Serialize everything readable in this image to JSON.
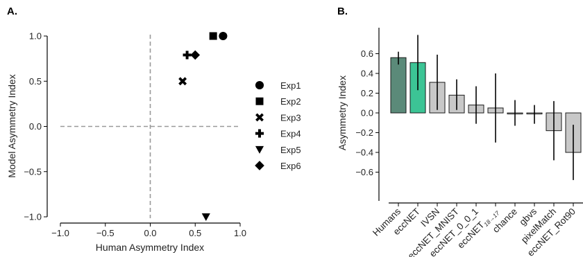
{
  "panels": {
    "a_label": "A.",
    "b_label": "B."
  },
  "chart_data": [
    {
      "type": "scatter",
      "xlabel": "Human Asymmetry Index",
      "ylabel": "Model Asymmetry Index",
      "xlim": [
        -1.0,
        1.0
      ],
      "ylim": [
        -1.0,
        1.0
      ],
      "xticks": [
        "−1.0",
        "−0.5",
        "0.0",
        "0.5",
        "1.0"
      ],
      "yticks": [
        "−1.0",
        "−0.5",
        "0.0",
        "0.5",
        "1.0"
      ],
      "reference_lines": [
        "x = 0 dashed",
        "y = 0 dashed"
      ],
      "legend_position": "right",
      "series": [
        {
          "name": "Exp1",
          "marker": "circle",
          "x": 0.81,
          "y": 1.0
        },
        {
          "name": "Exp2",
          "marker": "square",
          "x": 0.7,
          "y": 1.0
        },
        {
          "name": "Exp3",
          "marker": "x",
          "x": 0.36,
          "y": 0.5
        },
        {
          "name": "Exp4",
          "marker": "plus",
          "x": 0.41,
          "y": 0.79
        },
        {
          "name": "Exp5",
          "marker": "triangle-down",
          "x": 0.62,
          "y": -1.0
        },
        {
          "name": "Exp6",
          "marker": "diamond",
          "x": 0.5,
          "y": 0.79
        }
      ],
      "colors": {
        "points": "#000000",
        "reference": "#999999"
      }
    },
    {
      "type": "bar",
      "ylabel": "Asymmetry Index",
      "ylim": [
        -0.75,
        0.85
      ],
      "yticks": [
        0.6,
        0.4,
        0.2,
        0.0,
        -0.2,
        -0.4,
        -0.6
      ],
      "ytick_labels": [
        "0.6",
        "0.4",
        "0.2",
        "0.0",
        "−0.2",
        "−0.4",
        "−0.6"
      ],
      "categories": [
        {
          "label": "Humans",
          "value": 0.56,
          "err_low": 0.49,
          "err_high": 0.62,
          "color": "#5b8a79"
        },
        {
          "label": "eccNET",
          "value": 0.51,
          "err_low": 0.23,
          "err_high": 0.79,
          "color": "#3cc495"
        },
        {
          "label": "IVSN",
          "value": 0.31,
          "err_low": 0.03,
          "err_high": 0.59,
          "color": "#c8c8c8"
        },
        {
          "label": "eccNET_MNIST",
          "value": 0.18,
          "err_low": 0.03,
          "err_high": 0.34,
          "color": "#c8c8c8"
        },
        {
          "label": "eccNET_0_0_1",
          "value": 0.08,
          "err_low": -0.11,
          "err_high": 0.27,
          "color": "#c8c8c8"
        },
        {
          "label": "eccNET",
          "sub": "18→17",
          "value": 0.05,
          "err_low": -0.3,
          "err_high": 0.4,
          "color": "#c8c8c8"
        },
        {
          "label": "chance",
          "value": 0.0,
          "err_low": -0.13,
          "err_high": 0.13,
          "color": "#c8c8c8"
        },
        {
          "label": "gbvs",
          "value": -0.01,
          "err_low": -0.11,
          "err_high": 0.08,
          "color": "#c8c8c8"
        },
        {
          "label": "pixelMatch",
          "value": -0.18,
          "err_low": -0.48,
          "err_high": 0.12,
          "color": "#c8c8c8"
        },
        {
          "label": "eccNET_Rot90",
          "value": -0.4,
          "err_low": -0.68,
          "err_high": -0.12,
          "color": "#c8c8c8"
        }
      ]
    }
  ]
}
